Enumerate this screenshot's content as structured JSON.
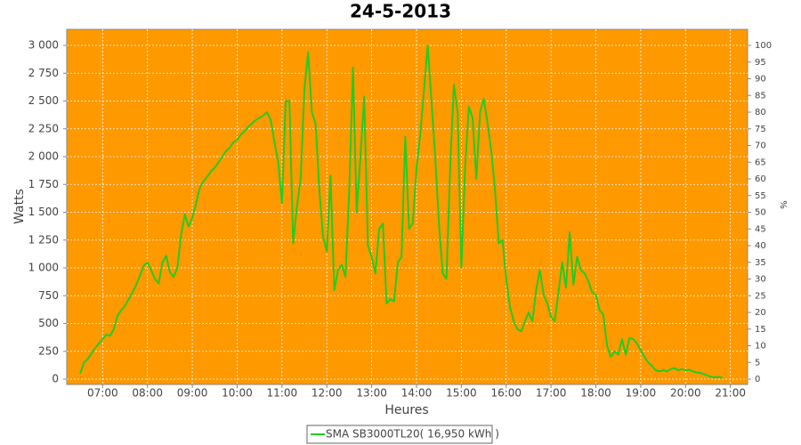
{
  "chart_data": {
    "type": "line",
    "title": "24-5-2013",
    "x_label": "Heures",
    "y_label": "Watts",
    "y2_label": "%",
    "background": "#ff9900",
    "grid": true,
    "legend": "bottom",
    "x": [
      "06:30",
      "06:35",
      "06:40",
      "06:45",
      "06:50",
      "06:55",
      "07:00",
      "07:05",
      "07:10",
      "07:15",
      "07:20",
      "07:25",
      "07:30",
      "07:35",
      "07:40",
      "07:45",
      "07:50",
      "07:55",
      "08:00",
      "08:05",
      "08:10",
      "08:15",
      "08:20",
      "08:25",
      "08:30",
      "08:35",
      "08:40",
      "08:45",
      "08:50",
      "08:55",
      "09:00",
      "09:05",
      "09:10",
      "09:15",
      "09:20",
      "09:25",
      "09:30",
      "09:35",
      "09:40",
      "09:45",
      "09:50",
      "09:55",
      "10:00",
      "10:05",
      "10:10",
      "10:15",
      "10:20",
      "10:25",
      "10:30",
      "10:35",
      "10:40",
      "10:45",
      "10:50",
      "10:55",
      "11:00",
      "11:05",
      "11:10",
      "11:15",
      "11:20",
      "11:25",
      "11:30",
      "11:35",
      "11:40",
      "11:45",
      "11:50",
      "11:55",
      "12:00",
      "12:05",
      "12:10",
      "12:15",
      "12:20",
      "12:25",
      "12:30",
      "12:35",
      "12:40",
      "12:45",
      "12:50",
      "12:55",
      "13:00",
      "13:05",
      "13:10",
      "13:15",
      "13:20",
      "13:25",
      "13:30",
      "13:35",
      "13:40",
      "13:45",
      "13:50",
      "13:55",
      "14:00",
      "14:05",
      "14:10",
      "14:15",
      "14:20",
      "14:25",
      "14:30",
      "14:35",
      "14:40",
      "14:45",
      "14:50",
      "14:55",
      "15:00",
      "15:05",
      "15:10",
      "15:15",
      "15:20",
      "15:25",
      "15:30",
      "15:35",
      "15:40",
      "15:45",
      "15:50",
      "15:55",
      "16:00",
      "16:05",
      "16:10",
      "16:15",
      "16:20",
      "16:25",
      "16:30",
      "16:35",
      "16:40",
      "16:45",
      "16:50",
      "16:55",
      "17:00",
      "17:05",
      "17:10",
      "17:15",
      "17:20",
      "17:25",
      "17:30",
      "17:35",
      "17:40",
      "17:45",
      "17:50",
      "17:55",
      "18:00",
      "18:05",
      "18:10",
      "18:15",
      "18:20",
      "18:25",
      "18:30",
      "18:35",
      "18:40",
      "18:45",
      "18:50",
      "18:55",
      "19:00",
      "19:05",
      "19:10",
      "19:15",
      "19:20",
      "19:25",
      "19:30",
      "19:35",
      "19:40",
      "19:45",
      "19:50",
      "19:55",
      "20:00",
      "20:05",
      "20:10",
      "20:15",
      "20:20",
      "20:25",
      "20:30",
      "20:35",
      "20:40",
      "20:45",
      "20:50"
    ],
    "series": [
      {
        "name": "SMA SB3000TL20( 16,950 kWh )",
        "color": "#22cc22",
        "values": [
          50,
          150,
          180,
          230,
          280,
          320,
          360,
          400,
          390,
          450,
          570,
          620,
          660,
          720,
          780,
          850,
          930,
          1020,
          1050,
          980,
          900,
          860,
          1050,
          1110,
          960,
          920,
          1000,
          1300,
          1480,
          1370,
          1450,
          1580,
          1720,
          1780,
          1820,
          1870,
          1900,
          1950,
          2000,
          2050,
          2080,
          2130,
          2150,
          2200,
          2230,
          2270,
          2300,
          2330,
          2350,
          2370,
          2400,
          2330,
          2130,
          1950,
          1580,
          2500,
          2500,
          1220,
          1550,
          1800,
          2600,
          2940,
          2400,
          2300,
          1700,
          1280,
          1150,
          1830,
          800,
          980,
          1030,
          920,
          1700,
          2800,
          1500,
          2000,
          2540,
          1200,
          1100,
          950,
          1350,
          1400,
          680,
          720,
          700,
          1050,
          1100,
          2180,
          1350,
          1400,
          1900,
          2200,
          2600,
          3000,
          2500,
          2000,
          1400,
          950,
          900,
          1900,
          2650,
          2400,
          1000,
          1900,
          2450,
          2350,
          1800,
          2400,
          2520,
          2300,
          2050,
          1700,
          1220,
          1250,
          900,
          650,
          520,
          450,
          430,
          520,
          600,
          520,
          800,
          980,
          760,
          680,
          560,
          520,
          780,
          1050,
          820,
          1320,
          850,
          1100,
          980,
          950,
          880,
          780,
          760,
          620,
          580,
          300,
          200,
          250,
          220,
          360,
          220,
          370,
          360,
          320,
          260,
          200,
          150,
          120,
          80,
          70,
          80,
          70,
          90,
          100,
          80,
          90,
          80,
          85,
          70,
          60,
          55,
          45,
          30,
          20,
          15,
          20,
          10
        ]
      }
    ],
    "xlim": [
      "06:12",
      "21:23"
    ],
    "xticks": [
      "07:00",
      "08:00",
      "09:00",
      "10:00",
      "11:00",
      "12:00",
      "13:00",
      "14:00",
      "15:00",
      "16:00",
      "17:00",
      "18:00",
      "19:00",
      "20:00",
      "21:00"
    ],
    "ylim": [
      -48,
      3144
    ],
    "yticks": [
      0,
      {
        "value": 250,
        "label": "250"
      },
      500,
      750,
      {
        "value": 1000,
        "label": "1 000"
      },
      {
        "value": 1250,
        "label": "1 250"
      },
      {
        "value": 1500,
        "label": "1 500"
      },
      {
        "value": 1750,
        "label": "1 750"
      },
      {
        "value": 2000,
        "label": "2 000"
      },
      {
        "value": 2250,
        "label": "2 250"
      },
      {
        "value": 2500,
        "label": "2 500"
      },
      {
        "value": 2750,
        "label": "2 750"
      },
      {
        "value": 3000,
        "label": "3 000"
      }
    ],
    "y2lim": [
      -1.6,
      104.8
    ],
    "y2ticks": [
      0,
      5,
      10,
      15,
      20,
      25,
      30,
      35,
      40,
      45,
      50,
      55,
      60,
      65,
      70,
      75,
      80,
      85,
      90,
      95,
      100
    ]
  }
}
